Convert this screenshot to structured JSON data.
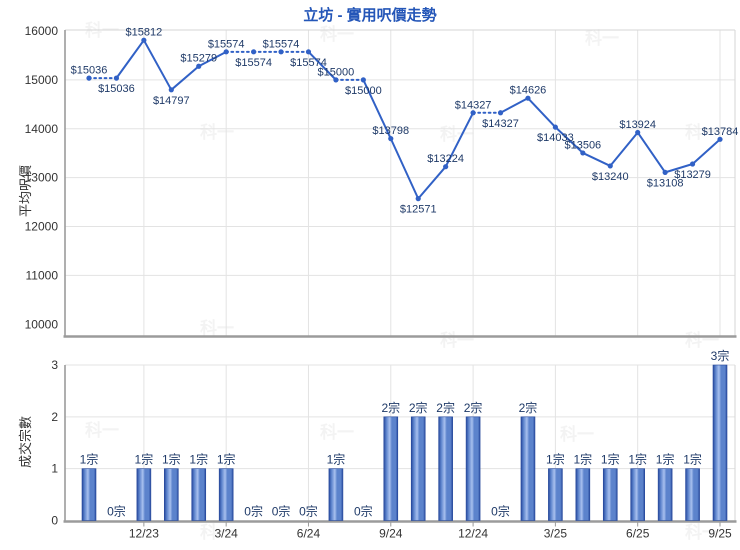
{
  "page": {
    "title": "立坊 - 實用呎價走勢",
    "watermark_text": "科一"
  },
  "colors": {
    "title": "#2456b8",
    "line": "#3161c6",
    "data_label": "#1f3a68",
    "bar_dark": "#26489c",
    "bar_mid": "#5c83cc",
    "bar_light": "#a8c0ee",
    "axis_line": "#9b9b9b",
    "grid_line": "#e3e3e3",
    "plot_border": "#d6d6d6",
    "tick_label": "#333333",
    "watermark": "#888888"
  },
  "chart_data": [
    {
      "type": "line",
      "title": "立坊 - 實用呎價走勢",
      "ylabel": "平均呎價",
      "ylim": [
        10000,
        16000
      ],
      "yticks": [
        10000,
        11000,
        12000,
        13000,
        14000,
        15000,
        16000
      ],
      "values": [
        15036,
        15036,
        15812,
        14797,
        15279,
        15574,
        15574,
        15574,
        15574,
        15000,
        15000,
        13798,
        12571,
        13224,
        14327,
        14327,
        14626,
        14033,
        13506,
        13240,
        13924,
        13108,
        13279,
        13784
      ],
      "point_labels": [
        "$15036",
        "$15036",
        "$15812",
        "$14797",
        "$15279",
        "$15574",
        "$15574",
        "$15574",
        "$15574",
        "$15000",
        "$15000",
        "$13798",
        "$12571",
        "$13224",
        "$14327",
        "$14327",
        "$14626",
        "$14033",
        "$13506",
        "$13240",
        "$13924",
        "$13108",
        "$13279",
        "$13784"
      ],
      "label_side": [
        "above",
        "below",
        "above",
        "below",
        "above",
        "above",
        "below",
        "above",
        "below",
        "above",
        "below",
        "above",
        "below",
        "above",
        "above",
        "below",
        "above",
        "below",
        "above",
        "below",
        "above",
        "below",
        "below",
        "above"
      ],
      "xticklabels": [
        "12/23",
        "3/24",
        "6/24",
        "9/24",
        "12/24",
        "3/25",
        "6/25",
        "9/25"
      ],
      "xtick_positions": [
        3,
        6,
        9,
        12,
        15,
        18,
        21,
        24
      ],
      "legend": "none",
      "grid": "on",
      "note": "segments drawn dotted where the corresponding month has zero transactions"
    },
    {
      "type": "bar",
      "ylabel": "成交宗數",
      "ylim": [
        0,
        3
      ],
      "yticks": [
        0,
        1,
        2,
        3
      ],
      "values": [
        1,
        0,
        1,
        1,
        1,
        1,
        0,
        0,
        0,
        1,
        0,
        2,
        2,
        2,
        2,
        0,
        2,
        1,
        1,
        1,
        1,
        1,
        1,
        3
      ],
      "bar_labels": [
        "1宗",
        "0宗",
        "1宗",
        "1宗",
        "1宗",
        "1宗",
        "0宗",
        "0宗",
        "0宗",
        "1宗",
        "0宗",
        "2宗",
        "2宗",
        "2宗",
        "2宗",
        "0宗",
        "2宗",
        "1宗",
        "1宗",
        "1宗",
        "1宗",
        "1宗",
        "1宗",
        "3宗"
      ],
      "xticklabels": [
        "12/23",
        "3/24",
        "6/24",
        "9/24",
        "12/24",
        "3/25",
        "6/25",
        "9/25"
      ],
      "xtick_positions": [
        3,
        6,
        9,
        12,
        15,
        18,
        21,
        24
      ],
      "legend": "none",
      "grid": "on"
    }
  ]
}
